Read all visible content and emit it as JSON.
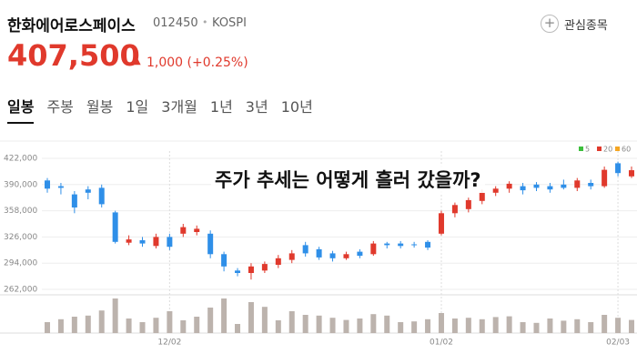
{
  "header": {
    "name": "한화에어로스페이스",
    "code": "012450",
    "separator": "•",
    "market": "KOSPI",
    "watch": "관심종목",
    "price": "407,500",
    "arrow": "▲",
    "change": "1,000 (+0.25%)"
  },
  "tabs": [
    "일봉",
    "주봉",
    "월봉",
    "1일",
    "3개월",
    "1년",
    "3년",
    "10년"
  ],
  "overlay": "주가 추세는 어떻게 흘러 갔을까?",
  "chart_data": {
    "type": "candlestick",
    "up_color": "#e0392c",
    "down_color": "#2f8fe8",
    "volume_color": "#bcb3ad",
    "ma_legend": [
      {
        "name": "5",
        "color": "#3cbf3c"
      },
      {
        "name": "20",
        "color": "#e0392c"
      },
      {
        "name": "60",
        "color": "#f5a623"
      }
    ],
    "ylim": [
      262000,
      422000
    ],
    "yticks": [
      {
        "value": 262000,
        "label": "262,000"
      },
      {
        "value": 294000,
        "label": "294,000"
      },
      {
        "value": 326000,
        "label": "326,000"
      },
      {
        "value": 358000,
        "label": "358,000"
      },
      {
        "value": 390000,
        "label": "390,000"
      },
      {
        "value": 422000,
        "label": "422,000"
      }
    ],
    "categories": [
      null,
      null,
      null,
      null,
      null,
      null,
      null,
      null,
      null,
      "12/02",
      null,
      null,
      null,
      null,
      null,
      null,
      null,
      null,
      null,
      null,
      null,
      null,
      null,
      null,
      null,
      null,
      null,
      null,
      null,
      "01/02",
      null,
      null,
      null,
      null,
      null,
      null,
      null,
      null,
      null,
      null,
      null,
      null,
      "02/03",
      null
    ],
    "open": [
      395000,
      388000,
      378000,
      384000,
      386000,
      356000,
      319000,
      322000,
      315000,
      326000,
      330000,
      332000,
      330000,
      305000,
      285000,
      282000,
      285000,
      292000,
      298000,
      316000,
      311000,
      306000,
      300000,
      308000,
      305000,
      318000,
      318000,
      317000,
      320000,
      330000,
      355000,
      360000,
      370000,
      380000,
      385000,
      388000,
      390000,
      388000,
      390000,
      386000,
      392000,
      388000,
      416000,
      400000
    ],
    "high": [
      398000,
      392000,
      382000,
      388000,
      390000,
      358000,
      328000,
      326000,
      330000,
      330000,
      342000,
      340000,
      334000,
      308000,
      288000,
      294000,
      296000,
      304000,
      310000,
      320000,
      314000,
      309000,
      308000,
      311000,
      321000,
      320000,
      321000,
      320000,
      322000,
      358000,
      368000,
      374000,
      384000,
      388000,
      394000,
      392000,
      393000,
      392000,
      396000,
      398000,
      396000,
      412000,
      418000,
      412000
    ],
    "low": [
      380000,
      378000,
      355000,
      372000,
      362000,
      318000,
      316000,
      314000,
      312000,
      310000,
      326000,
      328000,
      300000,
      284000,
      278000,
      274000,
      282000,
      288000,
      294000,
      302000,
      298000,
      296000,
      298000,
      300000,
      303000,
      312000,
      312000,
      313000,
      310000,
      328000,
      350000,
      356000,
      366000,
      376000,
      380000,
      378000,
      382000,
      380000,
      384000,
      382000,
      384000,
      386000,
      400000,
      398000
    ],
    "close": [
      385000,
      386000,
      362000,
      380000,
      366000,
      320000,
      323000,
      318000,
      326000,
      314000,
      338000,
      336000,
      305000,
      290000,
      282000,
      290000,
      293000,
      300000,
      306000,
      306000,
      301000,
      300000,
      305000,
      303000,
      318000,
      316000,
      315000,
      316000,
      313000,
      355000,
      365000,
      371000,
      380000,
      385000,
      391000,
      383000,
      386000,
      384000,
      386000,
      395000,
      388000,
      408000,
      404000,
      407500
    ],
    "volume": [
      30,
      38,
      45,
      48,
      62,
      95,
      40,
      30,
      42,
      60,
      35,
      45,
      70,
      95,
      25,
      85,
      72,
      35,
      60,
      50,
      48,
      42,
      36,
      40,
      52,
      48,
      30,
      32,
      38,
      55,
      40,
      42,
      38,
      44,
      46,
      30,
      28,
      40,
      34,
      38,
      30,
      50,
      42,
      36
    ]
  }
}
